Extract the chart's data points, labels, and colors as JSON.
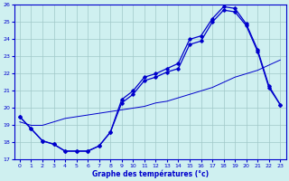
{
  "title": "Graphe des températures (°c)",
  "bg_color": "#cff0f0",
  "grid_color": "#a0c8c8",
  "line_color": "#0000cc",
  "xlim": [
    -0.5,
    23.5
  ],
  "ylim": [
    17,
    26
  ],
  "yticks": [
    17,
    18,
    19,
    20,
    21,
    22,
    23,
    24,
    25,
    26
  ],
  "xticks": [
    0,
    1,
    2,
    3,
    4,
    5,
    6,
    7,
    8,
    9,
    10,
    11,
    12,
    13,
    14,
    15,
    16,
    17,
    18,
    19,
    20,
    21,
    22,
    23
  ],
  "line1_x": [
    0,
    1,
    2,
    3,
    4,
    5,
    6,
    7,
    8,
    9,
    10,
    11,
    12,
    13,
    14,
    15,
    16,
    17,
    18,
    19,
    20,
    21,
    22,
    23
  ],
  "line1_y": [
    19.5,
    18.8,
    18.1,
    17.9,
    17.5,
    17.5,
    17.5,
    17.8,
    18.6,
    20.3,
    20.8,
    21.6,
    21.8,
    22.1,
    22.3,
    23.7,
    23.9,
    25.0,
    25.7,
    25.6,
    24.8,
    23.3,
    21.2,
    20.2
  ],
  "line2_x": [
    0,
    1,
    2,
    3,
    4,
    5,
    6,
    7,
    8,
    9,
    10,
    11,
    12,
    13,
    14,
    15,
    16,
    17,
    18,
    19,
    20,
    21,
    22,
    23
  ],
  "line2_y": [
    19.5,
    18.8,
    18.1,
    17.9,
    17.5,
    17.5,
    17.5,
    17.8,
    18.6,
    20.5,
    21.0,
    21.8,
    22.0,
    22.3,
    22.6,
    24.0,
    24.2,
    25.2,
    25.9,
    25.8,
    24.9,
    23.4,
    21.3,
    20.2
  ],
  "line3_x": [
    0,
    1,
    2,
    3,
    4,
    5,
    6,
    7,
    8,
    9,
    10,
    11,
    12,
    13,
    14,
    15,
    16,
    17,
    18,
    19,
    20,
    21,
    22,
    23
  ],
  "line3_y": [
    19.2,
    19.0,
    19.0,
    19.2,
    19.4,
    19.5,
    19.6,
    19.7,
    19.8,
    19.9,
    20.0,
    20.1,
    20.3,
    20.4,
    20.6,
    20.8,
    21.0,
    21.2,
    21.5,
    21.8,
    22.0,
    22.2,
    22.5,
    22.8
  ]
}
